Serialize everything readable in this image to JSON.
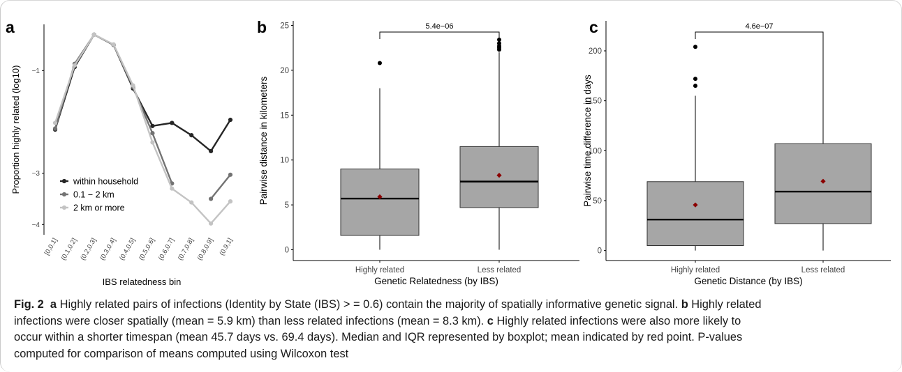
{
  "panels": [
    {
      "letter": "a",
      "chart_data": {
        "type": "line",
        "categories": [
          "[0,0.1]",
          "(0.1,0.2]",
          "(0.2,0.3]",
          "(0.3,0.4]",
          "(0.4,0.5]",
          "(0.5,0.6]",
          "(0.6,0.7]",
          "(0.7,0.8]",
          "(0.8,0.9]",
          "(0.9,1]"
        ],
        "series": [
          {
            "name": "within household",
            "color": "#262626",
            "values": [
              -2.15,
              -0.93,
              -0.3,
              -0.5,
              -1.35,
              -2.08,
              -2.02,
              -2.26,
              -2.57,
              -1.96
            ]
          },
          {
            "name": "0.1 − 2 km",
            "color": "#737373",
            "values": [
              -2.13,
              -0.87,
              -0.3,
              -0.5,
              -1.32,
              -2.22,
              -3.2,
              null,
              -3.5,
              -3.03
            ]
          },
          {
            "name": "2 km or more",
            "color": "#c3c3c3",
            "values": [
              -2.02,
              -0.9,
              -0.3,
              -0.49,
              -1.29,
              -2.4,
              -3.3,
              -3.57,
              -3.98,
              -3.55
            ]
          }
        ],
        "xlabel": "IBS relatedness bin",
        "ylabel": "Proportion highly related (log10)",
        "yticks": [
          -1,
          -3,
          -4
        ],
        "ytick_labels": [
          "−1",
          "−3",
          "−4"
        ],
        "ylim": [
          -4.2,
          -0.1
        ],
        "legend": "inside-bottom-left"
      }
    },
    {
      "letter": "b",
      "chart_data": {
        "type": "box",
        "categories": [
          "Highly related",
          "Less related"
        ],
        "boxes": [
          {
            "q1": 1.6,
            "median": 5.7,
            "q3": 9.0,
            "whisker_low": 0.0,
            "whisker_high": 18.0,
            "mean": 5.9,
            "outliers": [
              20.8
            ]
          },
          {
            "q1": 4.7,
            "median": 7.6,
            "q3": 11.5,
            "whisker_low": 0.0,
            "whisker_high": 22.0,
            "mean": 8.3,
            "outliers": [
              22.3,
              22.5,
              22.7,
              23.0,
              23.4
            ]
          }
        ],
        "xlabel": "Genetic Relatedness (by IBS)",
        "ylabel": "Pairwise distance in kilometers",
        "yticks": [
          0,
          5,
          10,
          15,
          20,
          25
        ],
        "ylim": [
          -1.2,
          25.5
        ],
        "pvalue": "5.4e−06",
        "box_color": "#a6a6a6",
        "mean_color": "#8b0000"
      }
    },
    {
      "letter": "c",
      "chart_data": {
        "type": "box",
        "categories": [
          "Highly related",
          "Less related"
        ],
        "boxes": [
          {
            "q1": 5,
            "median": 31,
            "q3": 69,
            "whisker_low": 0,
            "whisker_high": 155,
            "mean": 45.7,
            "outliers": [
              165,
              172,
              204
            ]
          },
          {
            "q1": 27,
            "median": 59,
            "q3": 107,
            "whisker_low": 0,
            "whisker_high": 215,
            "mean": 69.4,
            "outliers": []
          }
        ],
        "xlabel": "Genetic Distance (by IBS)",
        "ylabel": "Pairwise time difference in days",
        "yticks": [
          0,
          50,
          100,
          150,
          200
        ],
        "ylim": [
          -10,
          230
        ],
        "pvalue": "4.6e−07",
        "box_color": "#a6a6a6",
        "mean_color": "#8b0000"
      }
    }
  ],
  "caption": {
    "fig_label": "Fig. 2",
    "line1_a": "a",
    "line1_text": " Highly related pairs of infections (Identity by State (IBS) > = 0.6) contain the majority of spatially informative genetic signal. ",
    "line1_b": "b",
    "line1_tail": " Highly related",
    "line2_text": "infections were closer spatially (mean = 5.9 km) than less related infections (mean = 8.3 km). ",
    "line2_c": "c",
    "line2_tail": " Highly related infections were also more likely to",
    "line3": "occur within a shorter timespan (mean 45.7 days vs. 69.4 days). Median and IQR represented by boxplot; mean indicated by red point. P-values",
    "line4": "computed for comparison of means computed using Wilcoxon test"
  }
}
